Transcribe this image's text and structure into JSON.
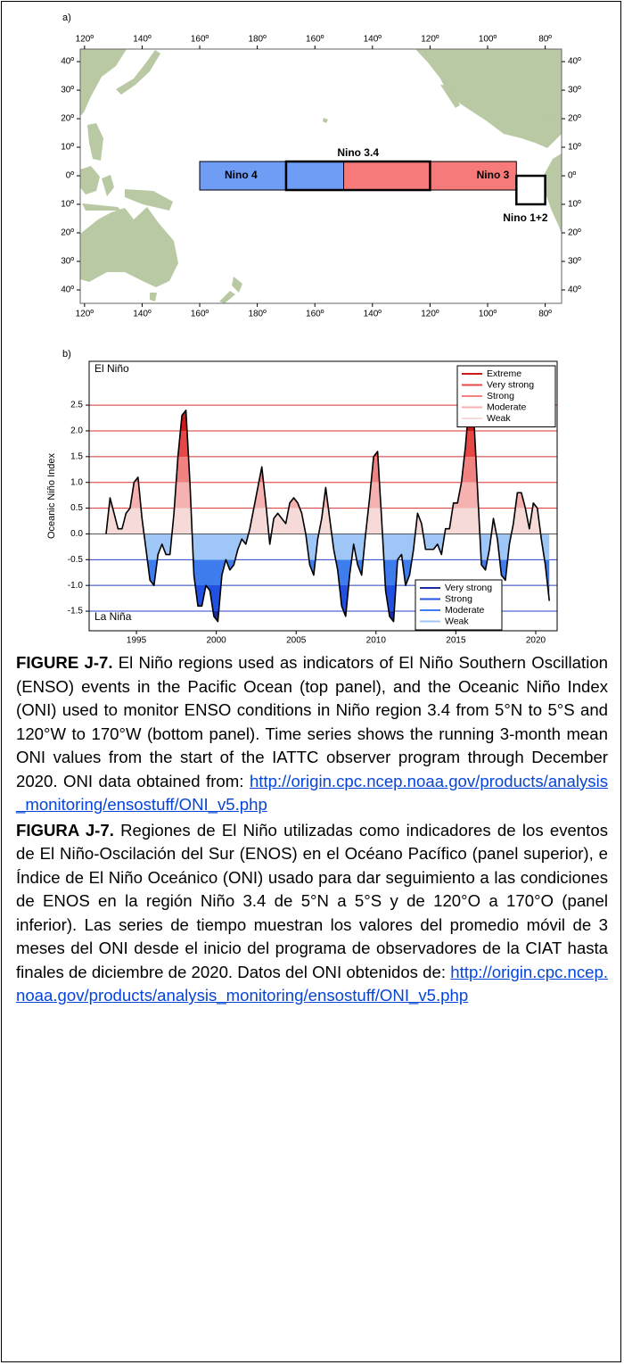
{
  "chart_data": [
    {
      "type": "map",
      "panel_label": "a)",
      "xlim": [
        118.5,
        285.7
      ],
      "ylim": [
        -44.7,
        44.4
      ],
      "xticks": [
        {
          "value": 120,
          "label": "120º"
        },
        {
          "value": 140,
          "label": "140º"
        },
        {
          "value": 160,
          "label": "160º"
        },
        {
          "value": 180,
          "label": "180º"
        },
        {
          "value": 200,
          "label": "160º"
        },
        {
          "value": 220,
          "label": "140º"
        },
        {
          "value": 240,
          "label": "120º"
        },
        {
          "value": 260,
          "label": "100º"
        },
        {
          "value": 280,
          "label": "80º"
        }
      ],
      "yticks": [
        {
          "value": 40,
          "label": "40º"
        },
        {
          "value": 30,
          "label": "30º"
        },
        {
          "value": 20,
          "label": "20º"
        },
        {
          "value": 10,
          "label": "10º"
        },
        {
          "value": 0,
          "label": "0º"
        },
        {
          "value": -10,
          "label": "10º"
        },
        {
          "value": -20,
          "label": "20º"
        },
        {
          "value": -30,
          "label": "30º"
        },
        {
          "value": -40,
          "label": "40º"
        }
      ],
      "regions": [
        {
          "name": "Nino 4",
          "lon": [
            160,
            210
          ],
          "lat": [
            -5,
            5
          ],
          "color": "#6f9cf5",
          "stroke_width": 1
        },
        {
          "name": "Nino 3",
          "lon": [
            210,
            270
          ],
          "lat": [
            -5,
            5
          ],
          "color": "#f77a7a",
          "stroke_width": 1
        },
        {
          "name": "Nino 3.4",
          "lon": [
            190,
            240
          ],
          "lat": [
            -5,
            5
          ],
          "color": "none",
          "stroke_width": 2.5
        },
        {
          "name": "Nino 1+2",
          "lon": [
            270,
            280
          ],
          "lat": [
            -10,
            0
          ],
          "color": "#ffffff",
          "stroke_width": 2.5
        }
      ]
    },
    {
      "type": "area",
      "panel_label": "b)",
      "ylabel": "Oceanic Niño Index",
      "annotations": [
        "El Niño",
        "La Niña"
      ],
      "x": [
        1993.1,
        1993.35,
        1993.6,
        1993.85,
        1994.1,
        1994.35,
        1994.6,
        1994.85,
        1995.1,
        1995.35,
        1995.6,
        1995.85,
        1996.1,
        1996.35,
        1996.6,
        1996.85,
        1997.1,
        1997.35,
        1997.6,
        1997.85,
        1998.1,
        1998.35,
        1998.6,
        1998.85,
        1999.1,
        1999.35,
        1999.6,
        1999.85,
        2000.1,
        2000.35,
        2000.6,
        2000.85,
        2001.1,
        2001.35,
        2001.6,
        2001.85,
        2002.1,
        2002.35,
        2002.6,
        2002.85,
        2003.1,
        2003.35,
        2003.6,
        2003.85,
        2004.1,
        2004.35,
        2004.6,
        2004.85,
        2005.1,
        2005.35,
        2005.6,
        2005.85,
        2006.1,
        2006.35,
        2006.6,
        2006.85,
        2007.1,
        2007.35,
        2007.6,
        2007.85,
        2008.1,
        2008.35,
        2008.6,
        2008.85,
        2009.1,
        2009.35,
        2009.6,
        2009.85,
        2010.1,
        2010.35,
        2010.6,
        2010.85,
        2011.1,
        2011.35,
        2011.6,
        2011.85,
        2012.1,
        2012.35,
        2012.6,
        2012.85,
        2013.1,
        2013.35,
        2013.6,
        2013.85,
        2014.1,
        2014.35,
        2014.6,
        2014.85,
        2015.1,
        2015.35,
        2015.6,
        2015.85,
        2016.1,
        2016.35,
        2016.6,
        2016.85,
        2017.1,
        2017.35,
        2017.6,
        2017.85,
        2018.1,
        2018.35,
        2018.6,
        2018.85,
        2019.1,
        2019.35,
        2019.6,
        2019.85,
        2020.1,
        2020.35,
        2020.6,
        2020.85
      ],
      "values": [
        0.0,
        0.7,
        0.4,
        0.1,
        0.1,
        0.4,
        0.5,
        1.0,
        1.1,
        0.3,
        -0.3,
        -0.9,
        -1.0,
        -0.4,
        -0.2,
        -0.4,
        -0.4,
        0.4,
        1.5,
        2.3,
        2.4,
        1.0,
        -0.8,
        -1.4,
        -1.4,
        -1.0,
        -1.1,
        -1.6,
        -1.7,
        -0.8,
        -0.5,
        -0.7,
        -0.6,
        -0.3,
        -0.1,
        -0.2,
        0.1,
        0.5,
        0.9,
        1.3,
        0.6,
        -0.2,
        0.3,
        0.4,
        0.3,
        0.2,
        0.6,
        0.7,
        0.6,
        0.4,
        0.0,
        -0.6,
        -0.8,
        -0.1,
        0.3,
        0.9,
        0.3,
        -0.3,
        -0.7,
        -1.4,
        -1.6,
        -0.8,
        -0.2,
        -0.6,
        -0.8,
        0.0,
        0.7,
        1.5,
        1.6,
        0.3,
        -1.1,
        -1.6,
        -1.7,
        -0.5,
        -0.4,
        -1.0,
        -0.8,
        -0.3,
        0.4,
        0.2,
        -0.3,
        -0.3,
        -0.3,
        -0.2,
        -0.4,
        0.1,
        0.1,
        0.6,
        0.6,
        1.0,
        1.7,
        2.6,
        2.4,
        0.9,
        -0.6,
        -0.7,
        -0.3,
        0.3,
        -0.1,
        -0.8,
        -0.9,
        -0.2,
        0.2,
        0.8,
        0.8,
        0.5,
        0.1,
        0.6,
        0.5,
        -0.1,
        -0.6,
        -1.3
      ],
      "line_color": "#000000",
      "xlim": [
        1992.04,
        2021.34
      ],
      "xticks": [
        1995,
        2000,
        2005,
        2010,
        2015,
        2020
      ],
      "ylim": [
        -1.88,
        3.35
      ],
      "yticks": [
        {
          "value": -1.5,
          "label": "-1.5"
        },
        {
          "value": -1,
          "label": "-1.0"
        },
        {
          "value": -0.5,
          "label": "-0.5"
        },
        {
          "value": 0,
          "label": "0.0"
        },
        0.5,
        {
          "value": 1,
          "label": "1.0"
        },
        1.5,
        {
          "value": 2,
          "label": "2.0"
        },
        2.5
      ],
      "grid_colors": {
        "positive": "#d83030",
        "negative": "#2840c8",
        "zero": "#888888"
      },
      "legends": [
        {
          "loc": "upper right",
          "entries": [
            {
              "name": "Extreme",
              "color": "#cc1a1a",
              "from": 2.0
            },
            {
              "name": "Very strong",
              "color": "#e64848",
              "from": 1.5
            },
            {
              "name": "Strong",
              "color": "#f08282",
              "from": 1.0
            },
            {
              "name": "Moderate",
              "color": "#f5b2b0",
              "from": 0.5
            },
            {
              "name": "Weak",
              "color": "#f6dad8",
              "from": 0
            }
          ]
        },
        {
          "loc": "lower right",
          "entries": [
            {
              "name": "Very strong",
              "color": "#1a2ca0",
              "from": -1.5
            },
            {
              "name": "Strong",
              "color": "#2250e0",
              "from": -1.0
            },
            {
              "name": "Moderate",
              "color": "#3f7cee",
              "from": -0.5
            },
            {
              "name": "Weak",
              "color": "#9ec6f6",
              "from": 0
            }
          ]
        }
      ]
    }
  ],
  "captions": [
    {
      "label": "FIGURE J-7.",
      "text": "El Niño regions used as indicators of El Niño Southern Oscillation (ENSO) events in the Pacific Ocean (top panel), and the Oceanic Niño Index (ONI) used to monitor ENSO conditions in Niño region 3.4 from 5°N to 5°S and 120°W to 170°W (bottom panel). Time series shows the running 3-month mean ONI values from the start of the IATTC observer program through December 2020. ONI data obtained from:",
      "link": "http://origin.cpc.ncep.noaa.gov/products/analysis_monitoring/ensostuff/ONI_v5.php"
    },
    {
      "label": "FIGURA J-7.",
      "text": "Regiones de El Niño utilizadas como indicadores de los eventos de El Niño-Oscilación del Sur (ENOS) en el Océano Pacífico (panel superior), e Índice de El Niño Oceánico (ONI) usado para dar seguimiento a las condiciones de ENOS en la región Niño 3.4 de 5°N a 5°S y de 120°O a 170°O (panel inferior). Las series de tiempo muestran los valores del promedio móvil de 3 meses del ONI desde el inicio del programa de observadores de la CIAT hasta finales de diciembre de 2020. Datos del ONI obtenidos de:",
      "link": "http://origin.cpc.ncep.noaa.gov/products/analysis_monitoring/ensostuff/ONI_v5.php"
    }
  ]
}
